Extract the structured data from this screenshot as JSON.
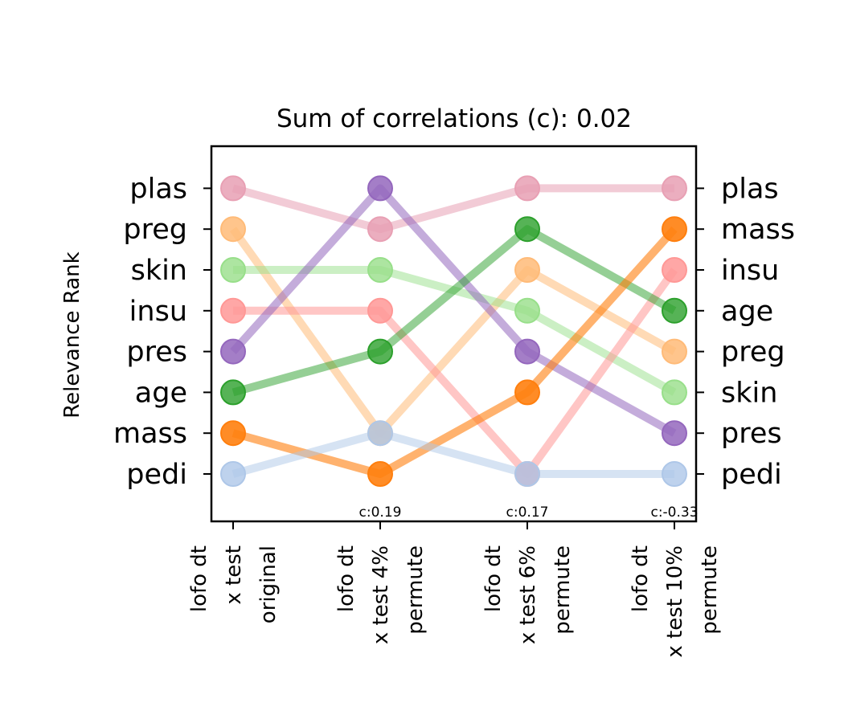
{
  "chart_data": {
    "type": "line",
    "title": "Sum of correlations (c): 0.02",
    "ylabel": "Relevance Rank",
    "xlabel": "",
    "categories": [
      [
        "lofo dt",
        "x test",
        "original"
      ],
      [
        "lofo dt",
        "x test 4%",
        "permute"
      ],
      [
        "lofo dt",
        "x test 6%",
        "permute"
      ],
      [
        "lofo dt",
        "x test 10%",
        "permute"
      ]
    ],
    "correlations": [
      "",
      "c:0.19",
      "c:0.17",
      "c:-0.33"
    ],
    "left_tick_labels": [
      "plas",
      "preg",
      "skin",
      "insu",
      "pres",
      "age",
      "mass",
      "pedi"
    ],
    "right_tick_labels": [
      "plas",
      "mass",
      "insu",
      "age",
      "preg",
      "skin",
      "pres",
      "pedi"
    ],
    "y_range": [
      0.5,
      9.5
    ],
    "series": [
      {
        "name": "plas",
        "color": "#e8a0b4",
        "opacity": 0.55,
        "values": [
          8,
          7,
          8,
          8
        ]
      },
      {
        "name": "preg",
        "color": "#ffbb78",
        "opacity": 0.55,
        "values": [
          7,
          2,
          6,
          4
        ]
      },
      {
        "name": "skin",
        "color": "#98df8a",
        "opacity": 0.5,
        "values": [
          6,
          6,
          5,
          3
        ]
      },
      {
        "name": "insu",
        "color": "#ff9896",
        "opacity": 0.55,
        "values": [
          5,
          5,
          1,
          6
        ]
      },
      {
        "name": "pres",
        "color": "#9467bd",
        "opacity": 0.55,
        "values": [
          4,
          8,
          4,
          2
        ]
      },
      {
        "name": "age",
        "color": "#2ca02c",
        "opacity": 0.5,
        "values": [
          3,
          4,
          7,
          5
        ]
      },
      {
        "name": "mass",
        "color": "#ff7f0e",
        "opacity": 0.6,
        "values": [
          2,
          1,
          3,
          7
        ]
      },
      {
        "name": "pedi",
        "color": "#aec7e8",
        "opacity": 0.5,
        "values": [
          1,
          2,
          1,
          1
        ]
      }
    ]
  }
}
